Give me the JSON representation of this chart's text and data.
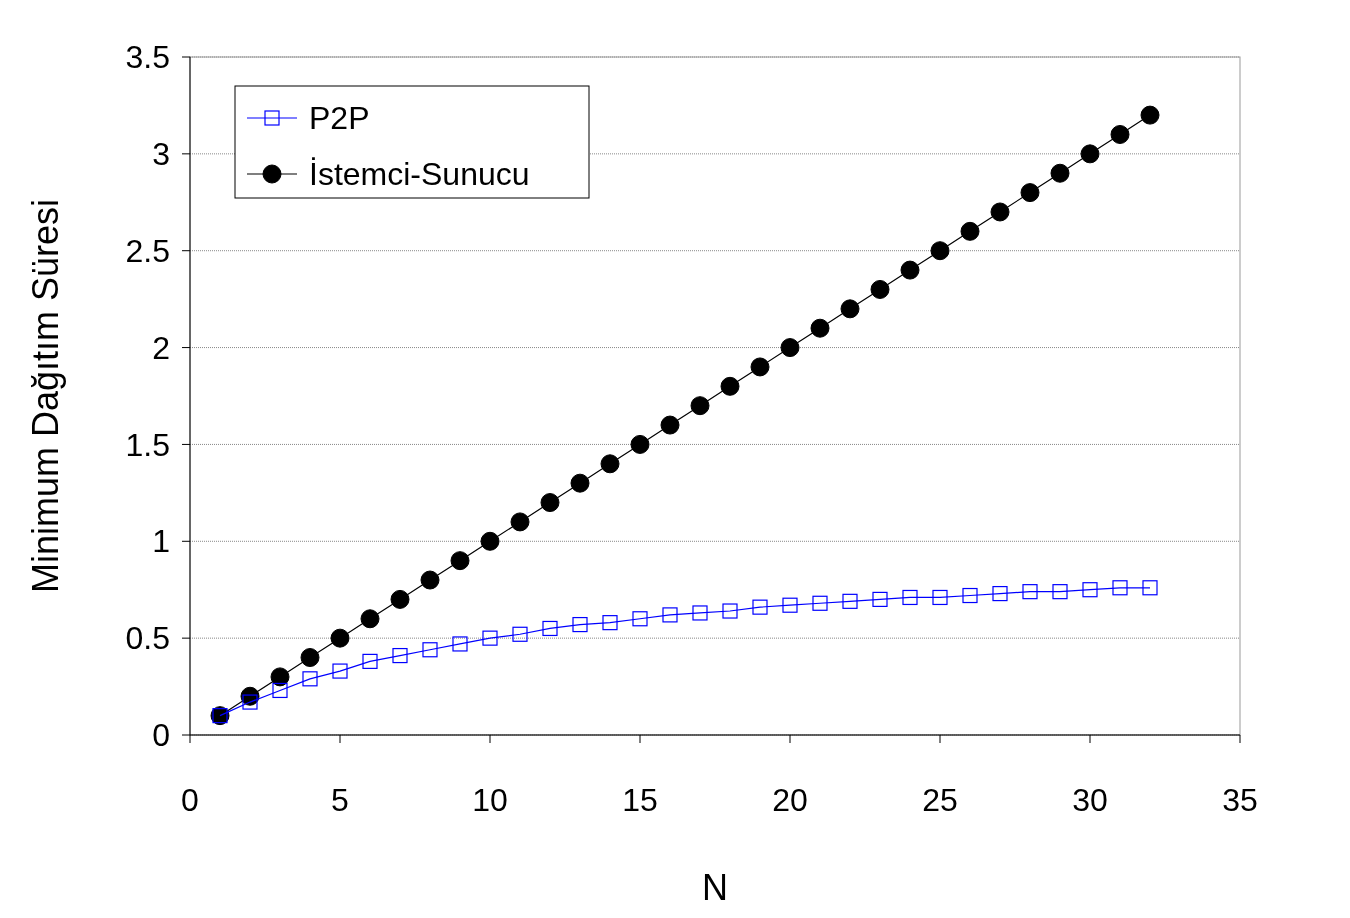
{
  "chart_data": {
    "type": "line",
    "xlabel": "N",
    "ylabel": "Minimum Dağıtım Süresi",
    "x": [
      1,
      2,
      3,
      4,
      5,
      6,
      7,
      8,
      9,
      10,
      11,
      12,
      13,
      14,
      15,
      16,
      17,
      18,
      19,
      20,
      21,
      22,
      23,
      24,
      25,
      26,
      27,
      28,
      29,
      30,
      31,
      32
    ],
    "series": [
      {
        "name": "P2P",
        "color": "#0000ff",
        "marker": "square",
        "values": [
          0.1,
          0.17,
          0.23,
          0.29,
          0.33,
          0.38,
          0.41,
          0.44,
          0.47,
          0.5,
          0.52,
          0.55,
          0.57,
          0.58,
          0.6,
          0.62,
          0.63,
          0.64,
          0.66,
          0.67,
          0.68,
          0.69,
          0.7,
          0.71,
          0.71,
          0.72,
          0.73,
          0.74,
          0.74,
          0.75,
          0.76,
          0.76
        ]
      },
      {
        "name": "İstemci-Sunucu",
        "color": "#000000",
        "marker": "circle",
        "values": [
          0.1,
          0.2,
          0.3,
          0.4,
          0.5,
          0.6,
          0.7,
          0.8,
          0.9,
          1.0,
          1.1,
          1.2,
          1.3,
          1.4,
          1.5,
          1.6,
          1.7,
          1.8,
          1.9,
          2.0,
          2.1,
          2.2,
          2.3,
          2.4,
          2.5,
          2.6,
          2.7,
          2.8,
          2.9,
          3.0,
          3.1,
          3.2
        ]
      }
    ],
    "xlim": [
      0,
      35
    ],
    "xticks": [
      0,
      5,
      10,
      15,
      20,
      25,
      30,
      35
    ],
    "ylim": [
      0,
      3.5
    ],
    "yticks": [
      0,
      0.5,
      1,
      1.5,
      2,
      2.5,
      3,
      3.5
    ],
    "grid": "y",
    "legend": "top left",
    "line_style": "solid"
  }
}
